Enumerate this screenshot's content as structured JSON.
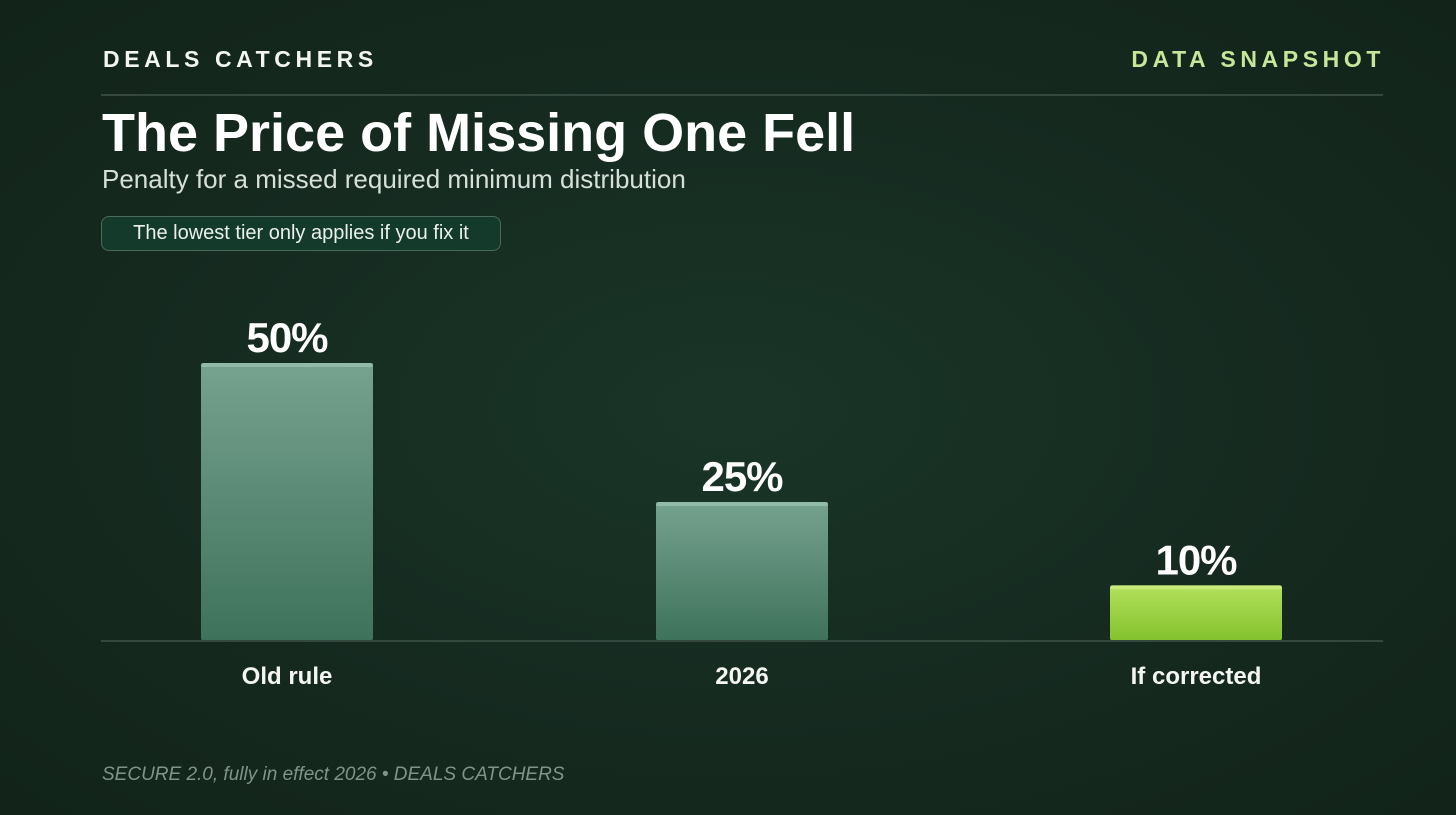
{
  "header": {
    "brand": "DEALS CATCHERS",
    "tag": "DATA SNAPSHOT"
  },
  "title": "The Price of Missing One Fell",
  "subtitle": "Penalty for a missed required minimum distribution",
  "callout": "The lowest tier only applies if you fix it",
  "footer": "SECURE 2.0, fully in effect 2026 • DEALS CATCHERS",
  "colors": {
    "bar_standard_top": "#76a290",
    "bar_standard_bottom": "#3e725a",
    "bar_highlight_top": "#b2e05a",
    "bar_highlight_bottom": "#84c22e",
    "accent": "#c8e69a"
  },
  "chart_data": {
    "type": "bar",
    "categories": [
      "Old rule",
      "2026",
      "If corrected"
    ],
    "values": [
      50,
      25,
      10
    ],
    "value_labels": [
      "50%",
      "25%",
      "10%"
    ],
    "highlight_index": 2,
    "title": "The Price of Missing One Fell",
    "xlabel": "",
    "ylabel": "",
    "ylim": [
      0,
      50
    ],
    "grid": false
  }
}
